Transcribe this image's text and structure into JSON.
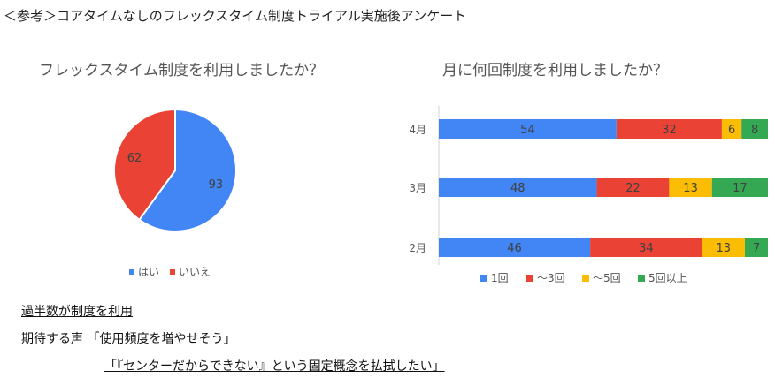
{
  "page": {
    "title": "＜参考＞コアタイムなしのフレックスタイム制度トライアル実施後アンケート"
  },
  "chart_data": [
    {
      "type": "pie",
      "title": "フレックスタイム制度を利用しましたか？",
      "slices": [
        {
          "label": "はい",
          "value": 93,
          "color": "#4285f4"
        },
        {
          "label": "いいえ",
          "value": 62,
          "color": "#ea4335"
        }
      ],
      "legend_placement": "bottom"
    },
    {
      "type": "bar",
      "orientation": "horizontal",
      "stacked": true,
      "title": "月に何回制度を利用しましたか？",
      "categories": [
        "4月",
        "3月",
        "2月"
      ],
      "series": [
        {
          "name": "1回",
          "values": [
            54,
            48,
            46
          ],
          "color": "#4285f4"
        },
        {
          "name": "～3回",
          "values": [
            32,
            22,
            34
          ],
          "color": "#ea4335"
        },
        {
          "name": "～5回",
          "values": [
            6,
            13,
            13
          ],
          "color": "#fbbc04"
        },
        {
          "name": "5回以上",
          "values": [
            8,
            17,
            7
          ],
          "color": "#34a853"
        }
      ],
      "legend_placement": "bottom",
      "grid": false
    }
  ],
  "notes": [
    "過半数が制度を利用",
    "期待する声 「使用頻度を増やせそう」",
    "「『センターだからできない』という固定概念を払拭したい」"
  ]
}
